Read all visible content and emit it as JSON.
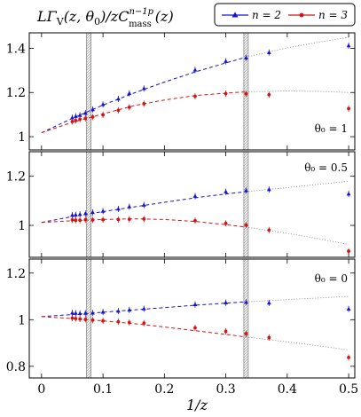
{
  "header": {
    "title": "LΓ_V(z, θ₀)/zC_mass^{n−1p}(z)",
    "title_main": "LΓ",
    "title_sub_V": "V",
    "title_args": "(z, θ",
    "title_sub_0": "0",
    "title_mid": ")/zC",
    "title_sup": "n−1p",
    "title_sub_mass": "mass",
    "title_end": "(z)"
  },
  "legend": {
    "entries": [
      {
        "label": "n = 2",
        "color": "#1414d2"
      },
      {
        "label": "n = 3",
        "color": "#d21414"
      }
    ]
  },
  "chart_data": {
    "type": "scatter",
    "xlabel": "1/z",
    "xlim": [
      -0.02,
      0.51
    ],
    "xticks": [
      "0",
      "0.1",
      "0.2",
      "0.3",
      "0.4",
      "0.5"
    ],
    "xtick_values": [
      0,
      0.1,
      0.2,
      0.3,
      0.4,
      0.5
    ],
    "vertical_bands": [
      0.077,
      0.333
    ],
    "panels": [
      {
        "annotation": "θ₀ = 1",
        "ylim": [
          0.94,
          1.47
        ],
        "yticks": [
          1,
          1.2,
          1.4
        ],
        "series": [
          {
            "name": "n = 2",
            "color": "#1414d2",
            "marker": "triangle",
            "x": [
              0.05,
              0.0556,
              0.0625,
              0.0714,
              0.0833,
              0.1,
              0.125,
              0.1429,
              0.1667,
              0.25,
              0.3,
              0.333,
              0.3704,
              0.5
            ],
            "y": [
              1.086,
              1.092,
              1.097,
              1.107,
              1.123,
              1.146,
              1.171,
              1.196,
              1.218,
              1.302,
              1.341,
              1.357,
              1.381,
              1.412
            ],
            "fit": [
              [
                0.0,
                1.018
              ],
              [
                0.05,
                1.083
              ],
              [
                0.1,
                1.143
              ],
              [
                0.15,
                1.197
              ],
              [
                0.2,
                1.247
              ],
              [
                0.25,
                1.293
              ],
              [
                0.3,
                1.334
              ],
              [
                0.333,
                1.36
              ],
              [
                0.4,
                1.402
              ],
              [
                0.45,
                1.427
              ],
              [
                0.5,
                1.45
              ]
            ],
            "fit_dashed_until": 0.333
          },
          {
            "name": "n = 3",
            "color": "#d21414",
            "marker": "circle",
            "x": [
              0.05,
              0.0556,
              0.0625,
              0.0714,
              0.0833,
              0.1,
              0.125,
              0.1429,
              0.1667,
              0.25,
              0.3,
              0.333,
              0.3704,
              0.5
            ],
            "y": [
              1.069,
              1.073,
              1.079,
              1.083,
              1.089,
              1.099,
              1.119,
              1.133,
              1.149,
              1.183,
              1.195,
              1.194,
              1.19,
              1.127
            ],
            "fit": [
              [
                0.0,
                1.018
              ],
              [
                0.05,
                1.065
              ],
              [
                0.1,
                1.103
              ],
              [
                0.15,
                1.14
              ],
              [
                0.2,
                1.166
              ],
              [
                0.25,
                1.186
              ],
              [
                0.3,
                1.197
              ],
              [
                0.333,
                1.203
              ],
              [
                0.4,
                1.207
              ],
              [
                0.45,
                1.205
              ],
              [
                0.5,
                1.2
              ]
            ],
            "fit_dashed_until": 0.333
          }
        ]
      },
      {
        "annotation": "θ₀ = 0.5",
        "ylim": [
          0.87,
          1.3
        ],
        "yticks": [
          1,
          1.2
        ],
        "series": [
          {
            "name": "n = 2",
            "color": "#1414d2",
            "marker": "triangle",
            "x": [
              0.05,
              0.0556,
              0.0625,
              0.0714,
              0.0833,
              0.1,
              0.125,
              0.1429,
              0.1667,
              0.25,
              0.3,
              0.333,
              0.3704,
              0.5
            ],
            "y": [
              1.042,
              1.043,
              1.045,
              1.048,
              1.053,
              1.058,
              1.067,
              1.076,
              1.083,
              1.119,
              1.137,
              1.142,
              1.146,
              1.128
            ],
            "fit": [
              [
                0.0,
                1.012
              ],
              [
                0.05,
                1.036
              ],
              [
                0.1,
                1.056
              ],
              [
                0.15,
                1.075
              ],
              [
                0.2,
                1.094
              ],
              [
                0.25,
                1.112
              ],
              [
                0.3,
                1.128
              ],
              [
                0.333,
                1.137
              ],
              [
                0.4,
                1.154
              ],
              [
                0.45,
                1.167
              ],
              [
                0.5,
                1.18
              ]
            ],
            "fit_dashed_until": 0.333
          },
          {
            "name": "n = 3",
            "color": "#d21414",
            "marker": "circle",
            "x": [
              0.05,
              0.0556,
              0.0625,
              0.0714,
              0.0833,
              0.1,
              0.125,
              0.1429,
              0.1667,
              0.25,
              0.3,
              0.333,
              0.3704,
              0.5
            ],
            "y": [
              1.022,
              1.021,
              1.021,
              1.023,
              1.022,
              1.023,
              1.024,
              1.025,
              1.026,
              1.019,
              1.008,
              1.001,
              0.981,
              0.895
            ],
            "fit": [
              [
                0.0,
                1.012
              ],
              [
                0.05,
                1.019
              ],
              [
                0.1,
                1.024
              ],
              [
                0.15,
                1.027
              ],
              [
                0.2,
                1.024
              ],
              [
                0.25,
                1.016
              ],
              [
                0.3,
                1.003
              ],
              [
                0.333,
                0.993
              ],
              [
                0.4,
                0.968
              ],
              [
                0.45,
                0.946
              ],
              [
                0.5,
                0.922
              ]
            ],
            "fit_dashed_until": 0.333
          }
        ]
      },
      {
        "annotation": "θ₀ = 0",
        "ylim": [
          0.75,
          1.26
        ],
        "yticks": [
          0.8,
          1,
          1.2
        ],
        "series": [
          {
            "name": "n = 2",
            "color": "#1414d2",
            "marker": "triangle",
            "x": [
              0.05,
              0.0556,
              0.0625,
              0.0714,
              0.0833,
              0.1,
              0.125,
              0.1429,
              0.1667,
              0.25,
              0.3,
              0.333,
              0.3704,
              0.5
            ],
            "y": [
              1.029,
              1.028,
              1.027,
              1.028,
              1.029,
              1.033,
              1.037,
              1.042,
              1.047,
              1.065,
              1.073,
              1.075,
              1.072,
              1.046
            ],
            "fit": [
              [
                0.0,
                1.013
              ],
              [
                0.05,
                1.022
              ],
              [
                0.1,
                1.032
              ],
              [
                0.15,
                1.042
              ],
              [
                0.2,
                1.052
              ],
              [
                0.25,
                1.062
              ],
              [
                0.3,
                1.071
              ],
              [
                0.333,
                1.077
              ],
              [
                0.4,
                1.086
              ],
              [
                0.45,
                1.093
              ],
              [
                0.5,
                1.1
              ]
            ],
            "fit_dashed_until": 0.333
          },
          {
            "name": "n = 3",
            "color": "#d21414",
            "marker": "circle",
            "x": [
              0.05,
              0.0556,
              0.0625,
              0.0714,
              0.0833,
              0.1,
              0.125,
              0.1429,
              0.1667,
              0.25,
              0.3,
              0.333,
              0.3704,
              0.5
            ],
            "y": [
              1.007,
              1.005,
              1.003,
              1.001,
              0.998,
              0.995,
              0.991,
              0.988,
              0.985,
              0.965,
              0.95,
              0.94,
              0.923,
              0.838
            ],
            "fit": [
              [
                0.0,
                1.013
              ],
              [
                0.05,
                1.005
              ],
              [
                0.1,
                0.995
              ],
              [
                0.15,
                0.983
              ],
              [
                0.2,
                0.969
              ],
              [
                0.25,
                0.953
              ],
              [
                0.3,
                0.937
              ],
              [
                0.333,
                0.926
              ],
              [
                0.4,
                0.905
              ],
              [
                0.45,
                0.888
              ],
              [
                0.5,
                0.87
              ]
            ],
            "fit_dashed_until": 0.333
          }
        ]
      }
    ]
  }
}
